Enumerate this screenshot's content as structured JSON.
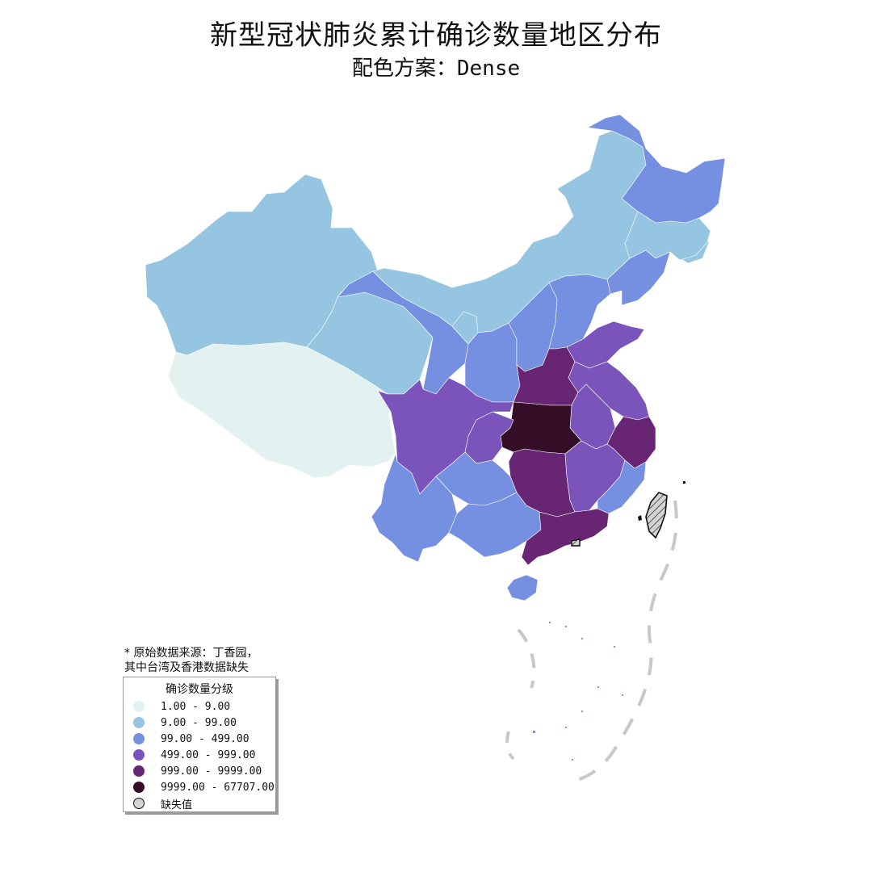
{
  "title": "新型冠状肺炎累计确诊数量地区分布",
  "subtitle": "配色方案：Dense",
  "note": [
    "* 原始数据来源：丁香园，",
    "其中台湾及香港数据缺失"
  ],
  "legend": {
    "title": "确诊数量分级",
    "items": [
      {
        "label": "1.00 - 9.00",
        "color": "#e4f1f1"
      },
      {
        "label": "9.00 - 99.00",
        "color": "#95c5e1"
      },
      {
        "label": "99.00 - 499.00",
        "color": "#7590e1"
      },
      {
        "label": "499.00 - 999.00",
        "color": "#7a54bb"
      },
      {
        "label": "999.00 - 9999.00",
        "color": "#672574"
      },
      {
        "label": "9999.00 - 67707.00",
        "color": "#340e26"
      },
      {
        "label": "缺失值",
        "color": "#d3d3d3"
      }
    ]
  },
  "colors": {
    "c1": "#e4f1f1",
    "c2": "#95c5e1",
    "c3": "#7590e1",
    "c4": "#7a54bb",
    "c5": "#672574",
    "c6": "#340e26",
    "missing": "#d3d3d3"
  }
}
